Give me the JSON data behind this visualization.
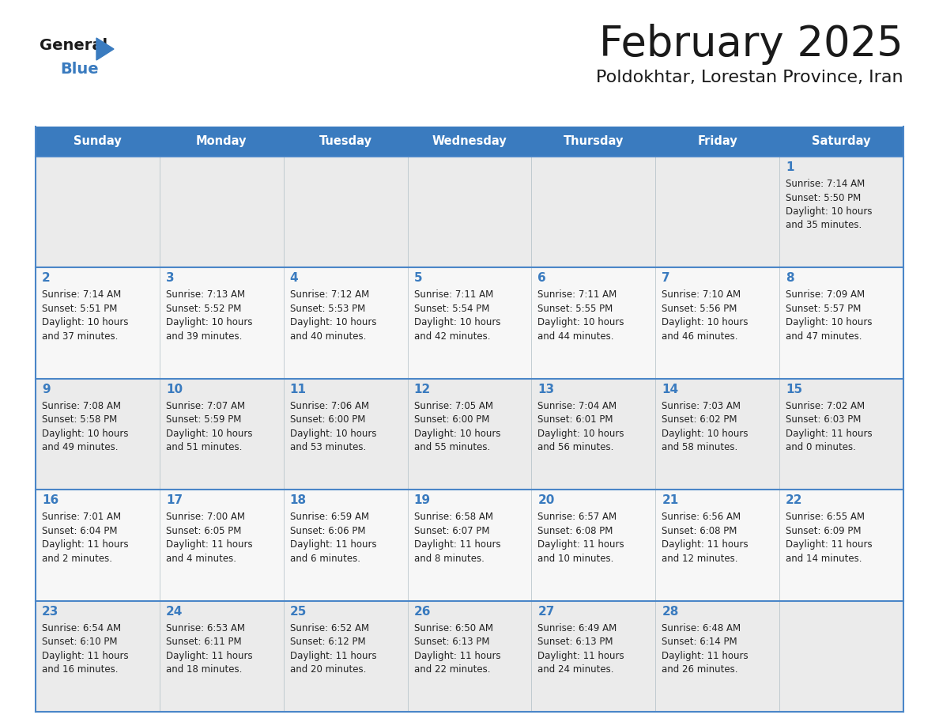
{
  "title": "February 2025",
  "subtitle": "Poldokhtar, Lorestan Province, Iran",
  "days_of_week": [
    "Sunday",
    "Monday",
    "Tuesday",
    "Wednesday",
    "Thursday",
    "Friday",
    "Saturday"
  ],
  "header_bg": "#3a7bbf",
  "header_text": "#ffffff",
  "row_bg_odd": "#ebebeb",
  "row_bg_even": "#f7f7f7",
  "cell_border_color": "#b0bec5",
  "row_border_color": "#4a86c8",
  "day_num_color": "#3a7bbf",
  "info_color": "#222222",
  "title_color": "#1a1a1a",
  "subtitle_color": "#1a1a1a",
  "logo_general_color": "#1a1a1a",
  "logo_blue_color": "#3a7bbf",
  "fig_bg": "#ffffff",
  "calendar_data": [
    [
      {
        "day": null,
        "sunrise": null,
        "sunset": null,
        "daylight": null
      },
      {
        "day": null,
        "sunrise": null,
        "sunset": null,
        "daylight": null
      },
      {
        "day": null,
        "sunrise": null,
        "sunset": null,
        "daylight": null
      },
      {
        "day": null,
        "sunrise": null,
        "sunset": null,
        "daylight": null
      },
      {
        "day": null,
        "sunrise": null,
        "sunset": null,
        "daylight": null
      },
      {
        "day": null,
        "sunrise": null,
        "sunset": null,
        "daylight": null
      },
      {
        "day": 1,
        "sunrise": "7:14 AM",
        "sunset": "5:50 PM",
        "daylight": "10 hours\nand 35 minutes."
      }
    ],
    [
      {
        "day": 2,
        "sunrise": "7:14 AM",
        "sunset": "5:51 PM",
        "daylight": "10 hours\nand 37 minutes."
      },
      {
        "day": 3,
        "sunrise": "7:13 AM",
        "sunset": "5:52 PM",
        "daylight": "10 hours\nand 39 minutes."
      },
      {
        "day": 4,
        "sunrise": "7:12 AM",
        "sunset": "5:53 PM",
        "daylight": "10 hours\nand 40 minutes."
      },
      {
        "day": 5,
        "sunrise": "7:11 AM",
        "sunset": "5:54 PM",
        "daylight": "10 hours\nand 42 minutes."
      },
      {
        "day": 6,
        "sunrise": "7:11 AM",
        "sunset": "5:55 PM",
        "daylight": "10 hours\nand 44 minutes."
      },
      {
        "day": 7,
        "sunrise": "7:10 AM",
        "sunset": "5:56 PM",
        "daylight": "10 hours\nand 46 minutes."
      },
      {
        "day": 8,
        "sunrise": "7:09 AM",
        "sunset": "5:57 PM",
        "daylight": "10 hours\nand 47 minutes."
      }
    ],
    [
      {
        "day": 9,
        "sunrise": "7:08 AM",
        "sunset": "5:58 PM",
        "daylight": "10 hours\nand 49 minutes."
      },
      {
        "day": 10,
        "sunrise": "7:07 AM",
        "sunset": "5:59 PM",
        "daylight": "10 hours\nand 51 minutes."
      },
      {
        "day": 11,
        "sunrise": "7:06 AM",
        "sunset": "6:00 PM",
        "daylight": "10 hours\nand 53 minutes."
      },
      {
        "day": 12,
        "sunrise": "7:05 AM",
        "sunset": "6:00 PM",
        "daylight": "10 hours\nand 55 minutes."
      },
      {
        "day": 13,
        "sunrise": "7:04 AM",
        "sunset": "6:01 PM",
        "daylight": "10 hours\nand 56 minutes."
      },
      {
        "day": 14,
        "sunrise": "7:03 AM",
        "sunset": "6:02 PM",
        "daylight": "10 hours\nand 58 minutes."
      },
      {
        "day": 15,
        "sunrise": "7:02 AM",
        "sunset": "6:03 PM",
        "daylight": "11 hours\nand 0 minutes."
      }
    ],
    [
      {
        "day": 16,
        "sunrise": "7:01 AM",
        "sunset": "6:04 PM",
        "daylight": "11 hours\nand 2 minutes."
      },
      {
        "day": 17,
        "sunrise": "7:00 AM",
        "sunset": "6:05 PM",
        "daylight": "11 hours\nand 4 minutes."
      },
      {
        "day": 18,
        "sunrise": "6:59 AM",
        "sunset": "6:06 PM",
        "daylight": "11 hours\nand 6 minutes."
      },
      {
        "day": 19,
        "sunrise": "6:58 AM",
        "sunset": "6:07 PM",
        "daylight": "11 hours\nand 8 minutes."
      },
      {
        "day": 20,
        "sunrise": "6:57 AM",
        "sunset": "6:08 PM",
        "daylight": "11 hours\nand 10 minutes."
      },
      {
        "day": 21,
        "sunrise": "6:56 AM",
        "sunset": "6:08 PM",
        "daylight": "11 hours\nand 12 minutes."
      },
      {
        "day": 22,
        "sunrise": "6:55 AM",
        "sunset": "6:09 PM",
        "daylight": "11 hours\nand 14 minutes."
      }
    ],
    [
      {
        "day": 23,
        "sunrise": "6:54 AM",
        "sunset": "6:10 PM",
        "daylight": "11 hours\nand 16 minutes."
      },
      {
        "day": 24,
        "sunrise": "6:53 AM",
        "sunset": "6:11 PM",
        "daylight": "11 hours\nand 18 minutes."
      },
      {
        "day": 25,
        "sunrise": "6:52 AM",
        "sunset": "6:12 PM",
        "daylight": "11 hours\nand 20 minutes."
      },
      {
        "day": 26,
        "sunrise": "6:50 AM",
        "sunset": "6:13 PM",
        "daylight": "11 hours\nand 22 minutes."
      },
      {
        "day": 27,
        "sunrise": "6:49 AM",
        "sunset": "6:13 PM",
        "daylight": "11 hours\nand 24 minutes."
      },
      {
        "day": 28,
        "sunrise": "6:48 AM",
        "sunset": "6:14 PM",
        "daylight": "11 hours\nand 26 minutes."
      },
      {
        "day": null,
        "sunrise": null,
        "sunset": null,
        "daylight": null
      }
    ]
  ]
}
